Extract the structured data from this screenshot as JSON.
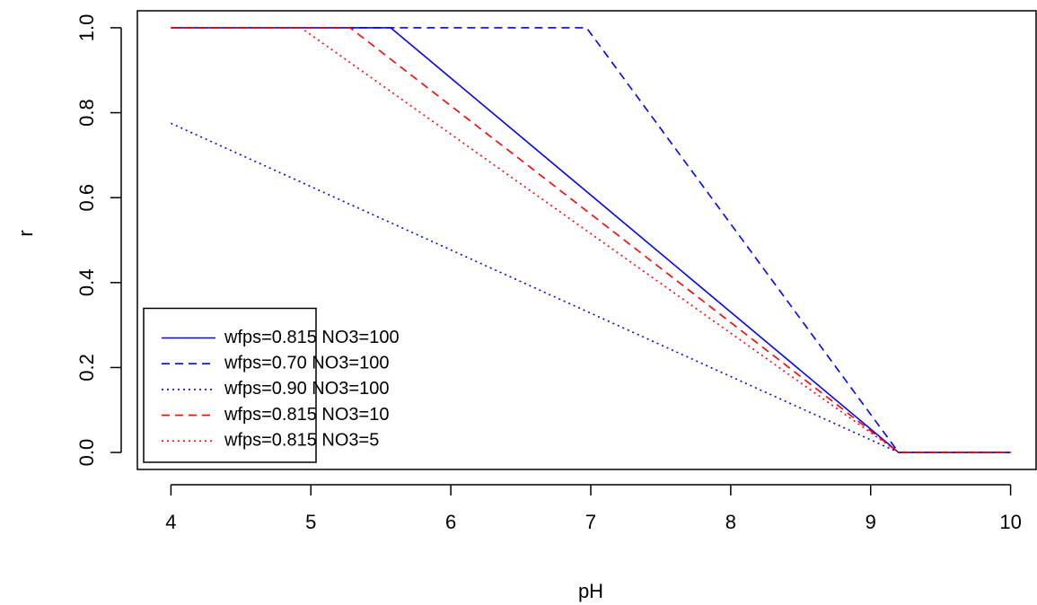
{
  "chart_data": {
    "type": "line",
    "x_label": "pH",
    "y_label": "r",
    "xlim": [
      3.76,
      10.24
    ],
    "ylim": [
      -0.04,
      1.04
    ],
    "xticks": [
      4,
      5,
      6,
      7,
      8,
      9,
      10
    ],
    "yticks": [
      {
        "value": 0,
        "label": "0.0"
      },
      {
        "value": 0.2,
        "label": "0.2"
      },
      {
        "value": 0.4,
        "label": "0.4"
      },
      {
        "value": 0.6,
        "label": "0.6"
      },
      {
        "value": 0.8,
        "label": "0.8"
      },
      {
        "value": 1,
        "label": "1.0"
      }
    ],
    "legend": "bottomleft",
    "series": [
      {
        "name": "wfps=0.815 NO3=100",
        "color": "#0000ff",
        "dash": "solid",
        "x": [
          4,
          5.57,
          9.2,
          10
        ],
        "values": [
          1,
          1,
          0,
          0
        ]
      },
      {
        "name": "wfps=0.70 NO3=100",
        "color": "#0000ff",
        "dash": "dashed",
        "x": [
          4,
          6.97,
          9.2,
          10
        ],
        "values": [
          1,
          1,
          0,
          0
        ]
      },
      {
        "name": "wfps=0.90 NO3=100",
        "color": "#0000ff",
        "dash": "dotted",
        "x": [
          4,
          9.2,
          10
        ],
        "values": [
          0.775,
          0,
          0
        ]
      },
      {
        "name": "wfps=0.815 NO3=10",
        "color": "#ff0000",
        "dash": "dashed",
        "x": [
          4,
          5.28,
          9.2,
          10
        ],
        "values": [
          1,
          1,
          0,
          0
        ]
      },
      {
        "name": "wfps=0.815 NO3=5",
        "color": "#ff0000",
        "dash": "dotted",
        "x": [
          4,
          4.93,
          9.2,
          10
        ],
        "values": [
          1,
          1,
          0,
          0
        ]
      }
    ]
  }
}
